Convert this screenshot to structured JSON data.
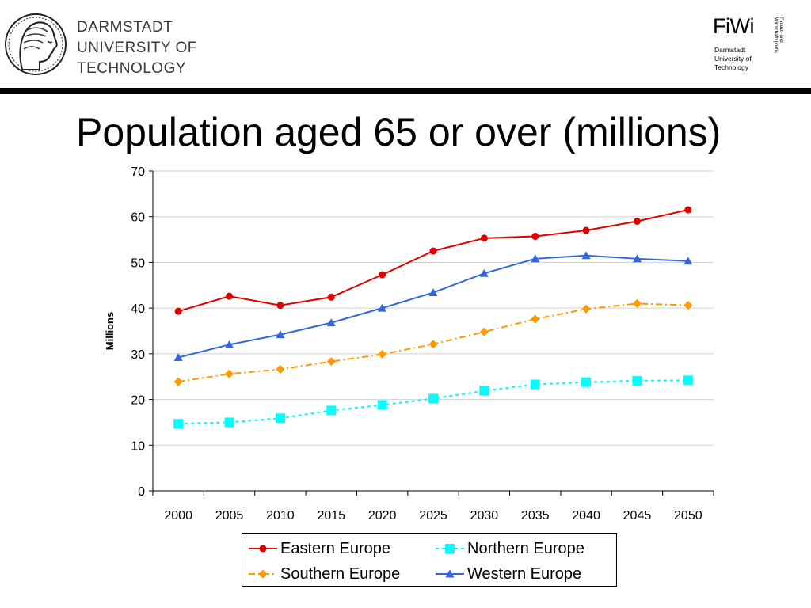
{
  "header": {
    "university_lines": [
      "DARMSTADT",
      "UNIVERSITY OF",
      "TECHNOLOGY"
    ],
    "fiwi": {
      "title": "FiWi",
      "subtitle_lines": [
        "Darmstadt",
        "University of",
        "Technology"
      ],
      "vertical_lines": [
        "Finanz- und",
        "Wirtschaftspolitik"
      ]
    }
  },
  "slide": {
    "title": "Population aged 65 or over (millions)"
  },
  "chart_data": {
    "type": "line",
    "title": "",
    "xlabel": "",
    "ylabel": "Millions",
    "ylim": [
      0,
      70
    ],
    "yticks": [
      0,
      10,
      20,
      30,
      40,
      50,
      60,
      70
    ],
    "grid": true,
    "legend_position": "bottom",
    "categories": [
      "2000",
      "2005",
      "2010",
      "2015",
      "2020",
      "2025",
      "2030",
      "2035",
      "2040",
      "2045",
      "2050"
    ],
    "series": [
      {
        "name": "Eastern Europe",
        "color": "#e00000",
        "marker": "circle",
        "dash": "solid",
        "values": [
          39.3,
          42.6,
          40.6,
          42.4,
          47.3,
          52.5,
          55.3,
          55.7,
          57.0,
          59.0,
          61.5
        ]
      },
      {
        "name": "Northern Europe",
        "color": "#00ffff",
        "marker": "square",
        "dash": "dashed",
        "values": [
          14.7,
          15.0,
          15.9,
          17.6,
          18.8,
          20.2,
          21.9,
          23.3,
          23.8,
          24.1,
          24.2
        ]
      },
      {
        "name": "Southern Europe",
        "color": "#ff9900",
        "marker": "diamond",
        "dash": "dashdot",
        "values": [
          23.9,
          25.6,
          26.6,
          28.3,
          29.9,
          32.1,
          34.8,
          37.6,
          39.8,
          41.0,
          40.6
        ]
      },
      {
        "name": "Western Europe",
        "color": "#3366dd",
        "marker": "triangle",
        "dash": "solid",
        "values": [
          29.2,
          32.0,
          34.2,
          36.8,
          40.0,
          43.4,
          47.6,
          50.8,
          51.5,
          50.8,
          50.3
        ]
      }
    ]
  }
}
